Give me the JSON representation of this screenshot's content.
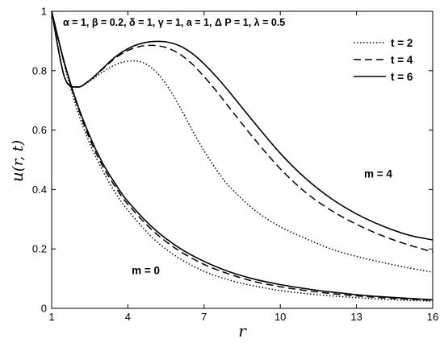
{
  "chart_data": {
    "type": "line",
    "title": "",
    "annotation_params": "α = 1, β = 0.2, δ = 1, γ = 1, a = 1, Δ P = 1, λ = 0.5",
    "xlabel_main": "r",
    "ylabel_main": "u",
    "ylabel_args": "(r, t)",
    "xlim": [
      1,
      16
    ],
    "ylim": [
      0,
      1
    ],
    "xticks": [
      1,
      4,
      7,
      10,
      13,
      16
    ],
    "yticks": [
      0,
      0.2,
      0.4,
      0.6,
      0.8,
      1
    ],
    "grid": false,
    "legend_position": "top-right",
    "annotations": [
      {
        "text": "m = 4",
        "x": 13.3,
        "y": 0.44
      },
      {
        "text": "m = 0",
        "x": 4.15,
        "y": 0.115
      }
    ],
    "series": [
      {
        "name": "t = 2",
        "style": "dotted",
        "group": "m = 4",
        "x": [
          1,
          1.5,
          2,
          2.5,
          3,
          3.5,
          4,
          4.5,
          5,
          5.5,
          6,
          6.5,
          7,
          7.5,
          8,
          9,
          10,
          11,
          12,
          13,
          14,
          15,
          16
        ],
        "y": [
          1.0,
          0.78,
          0.745,
          0.765,
          0.795,
          0.82,
          0.832,
          0.83,
          0.805,
          0.755,
          0.685,
          0.605,
          0.53,
          0.465,
          0.41,
          0.33,
          0.275,
          0.235,
          0.2,
          0.175,
          0.155,
          0.137,
          0.122
        ]
      },
      {
        "name": "t = 4",
        "style": "dashed",
        "group": "m = 4",
        "x": [
          1,
          1.5,
          2,
          2.5,
          3,
          3.5,
          4,
          4.5,
          5,
          5.5,
          6,
          6.5,
          7,
          7.5,
          8,
          9,
          10,
          11,
          12,
          13,
          14,
          15,
          16
        ],
        "y": [
          1.0,
          0.78,
          0.745,
          0.768,
          0.805,
          0.842,
          0.868,
          0.882,
          0.885,
          0.878,
          0.858,
          0.825,
          0.78,
          0.73,
          0.675,
          0.568,
          0.47,
          0.39,
          0.33,
          0.283,
          0.245,
          0.215,
          0.19
        ]
      },
      {
        "name": "t = 6",
        "style": "solid",
        "group": "m = 4",
        "x": [
          1,
          1.5,
          2,
          2.5,
          3,
          3.5,
          4,
          4.5,
          5,
          5.5,
          6,
          6.5,
          7,
          7.5,
          8,
          9,
          10,
          11,
          12,
          13,
          14,
          15,
          16
        ],
        "y": [
          1.0,
          0.78,
          0.745,
          0.768,
          0.807,
          0.846,
          0.874,
          0.891,
          0.898,
          0.897,
          0.885,
          0.86,
          0.823,
          0.778,
          0.728,
          0.623,
          0.522,
          0.437,
          0.37,
          0.318,
          0.278,
          0.248,
          0.23
        ]
      },
      {
        "name": "t = 2",
        "style": "dotted",
        "group": "m = 0",
        "x": [
          1,
          1.5,
          2,
          2.5,
          3,
          3.5,
          4,
          5,
          6,
          7,
          8,
          9,
          10,
          11,
          12,
          13,
          14,
          15,
          16
        ],
        "y": [
          1.0,
          0.82,
          0.67,
          0.555,
          0.465,
          0.39,
          0.33,
          0.235,
          0.17,
          0.125,
          0.095,
          0.075,
          0.06,
          0.05,
          0.042,
          0.036,
          0.031,
          0.027,
          0.024
        ]
      },
      {
        "name": "t = 4",
        "style": "dashed",
        "group": "m = 0",
        "x": [
          1,
          1.5,
          2,
          2.5,
          3,
          3.5,
          4,
          5,
          6,
          7,
          8,
          9,
          10,
          11,
          12,
          13,
          14,
          15,
          16
        ],
        "y": [
          1.0,
          0.825,
          0.685,
          0.57,
          0.48,
          0.41,
          0.35,
          0.26,
          0.195,
          0.148,
          0.115,
          0.09,
          0.073,
          0.06,
          0.05,
          0.042,
          0.036,
          0.031,
          0.027
        ]
      },
      {
        "name": "t = 6",
        "style": "solid",
        "group": "m = 0",
        "x": [
          1,
          1.5,
          2,
          2.5,
          3,
          3.5,
          4,
          5,
          6,
          7,
          8,
          9,
          10,
          11,
          12,
          13,
          14,
          15,
          16
        ],
        "y": [
          1.0,
          0.828,
          0.69,
          0.58,
          0.49,
          0.42,
          0.36,
          0.27,
          0.205,
          0.158,
          0.123,
          0.098,
          0.08,
          0.066,
          0.055,
          0.046,
          0.039,
          0.034,
          0.029
        ]
      }
    ]
  }
}
